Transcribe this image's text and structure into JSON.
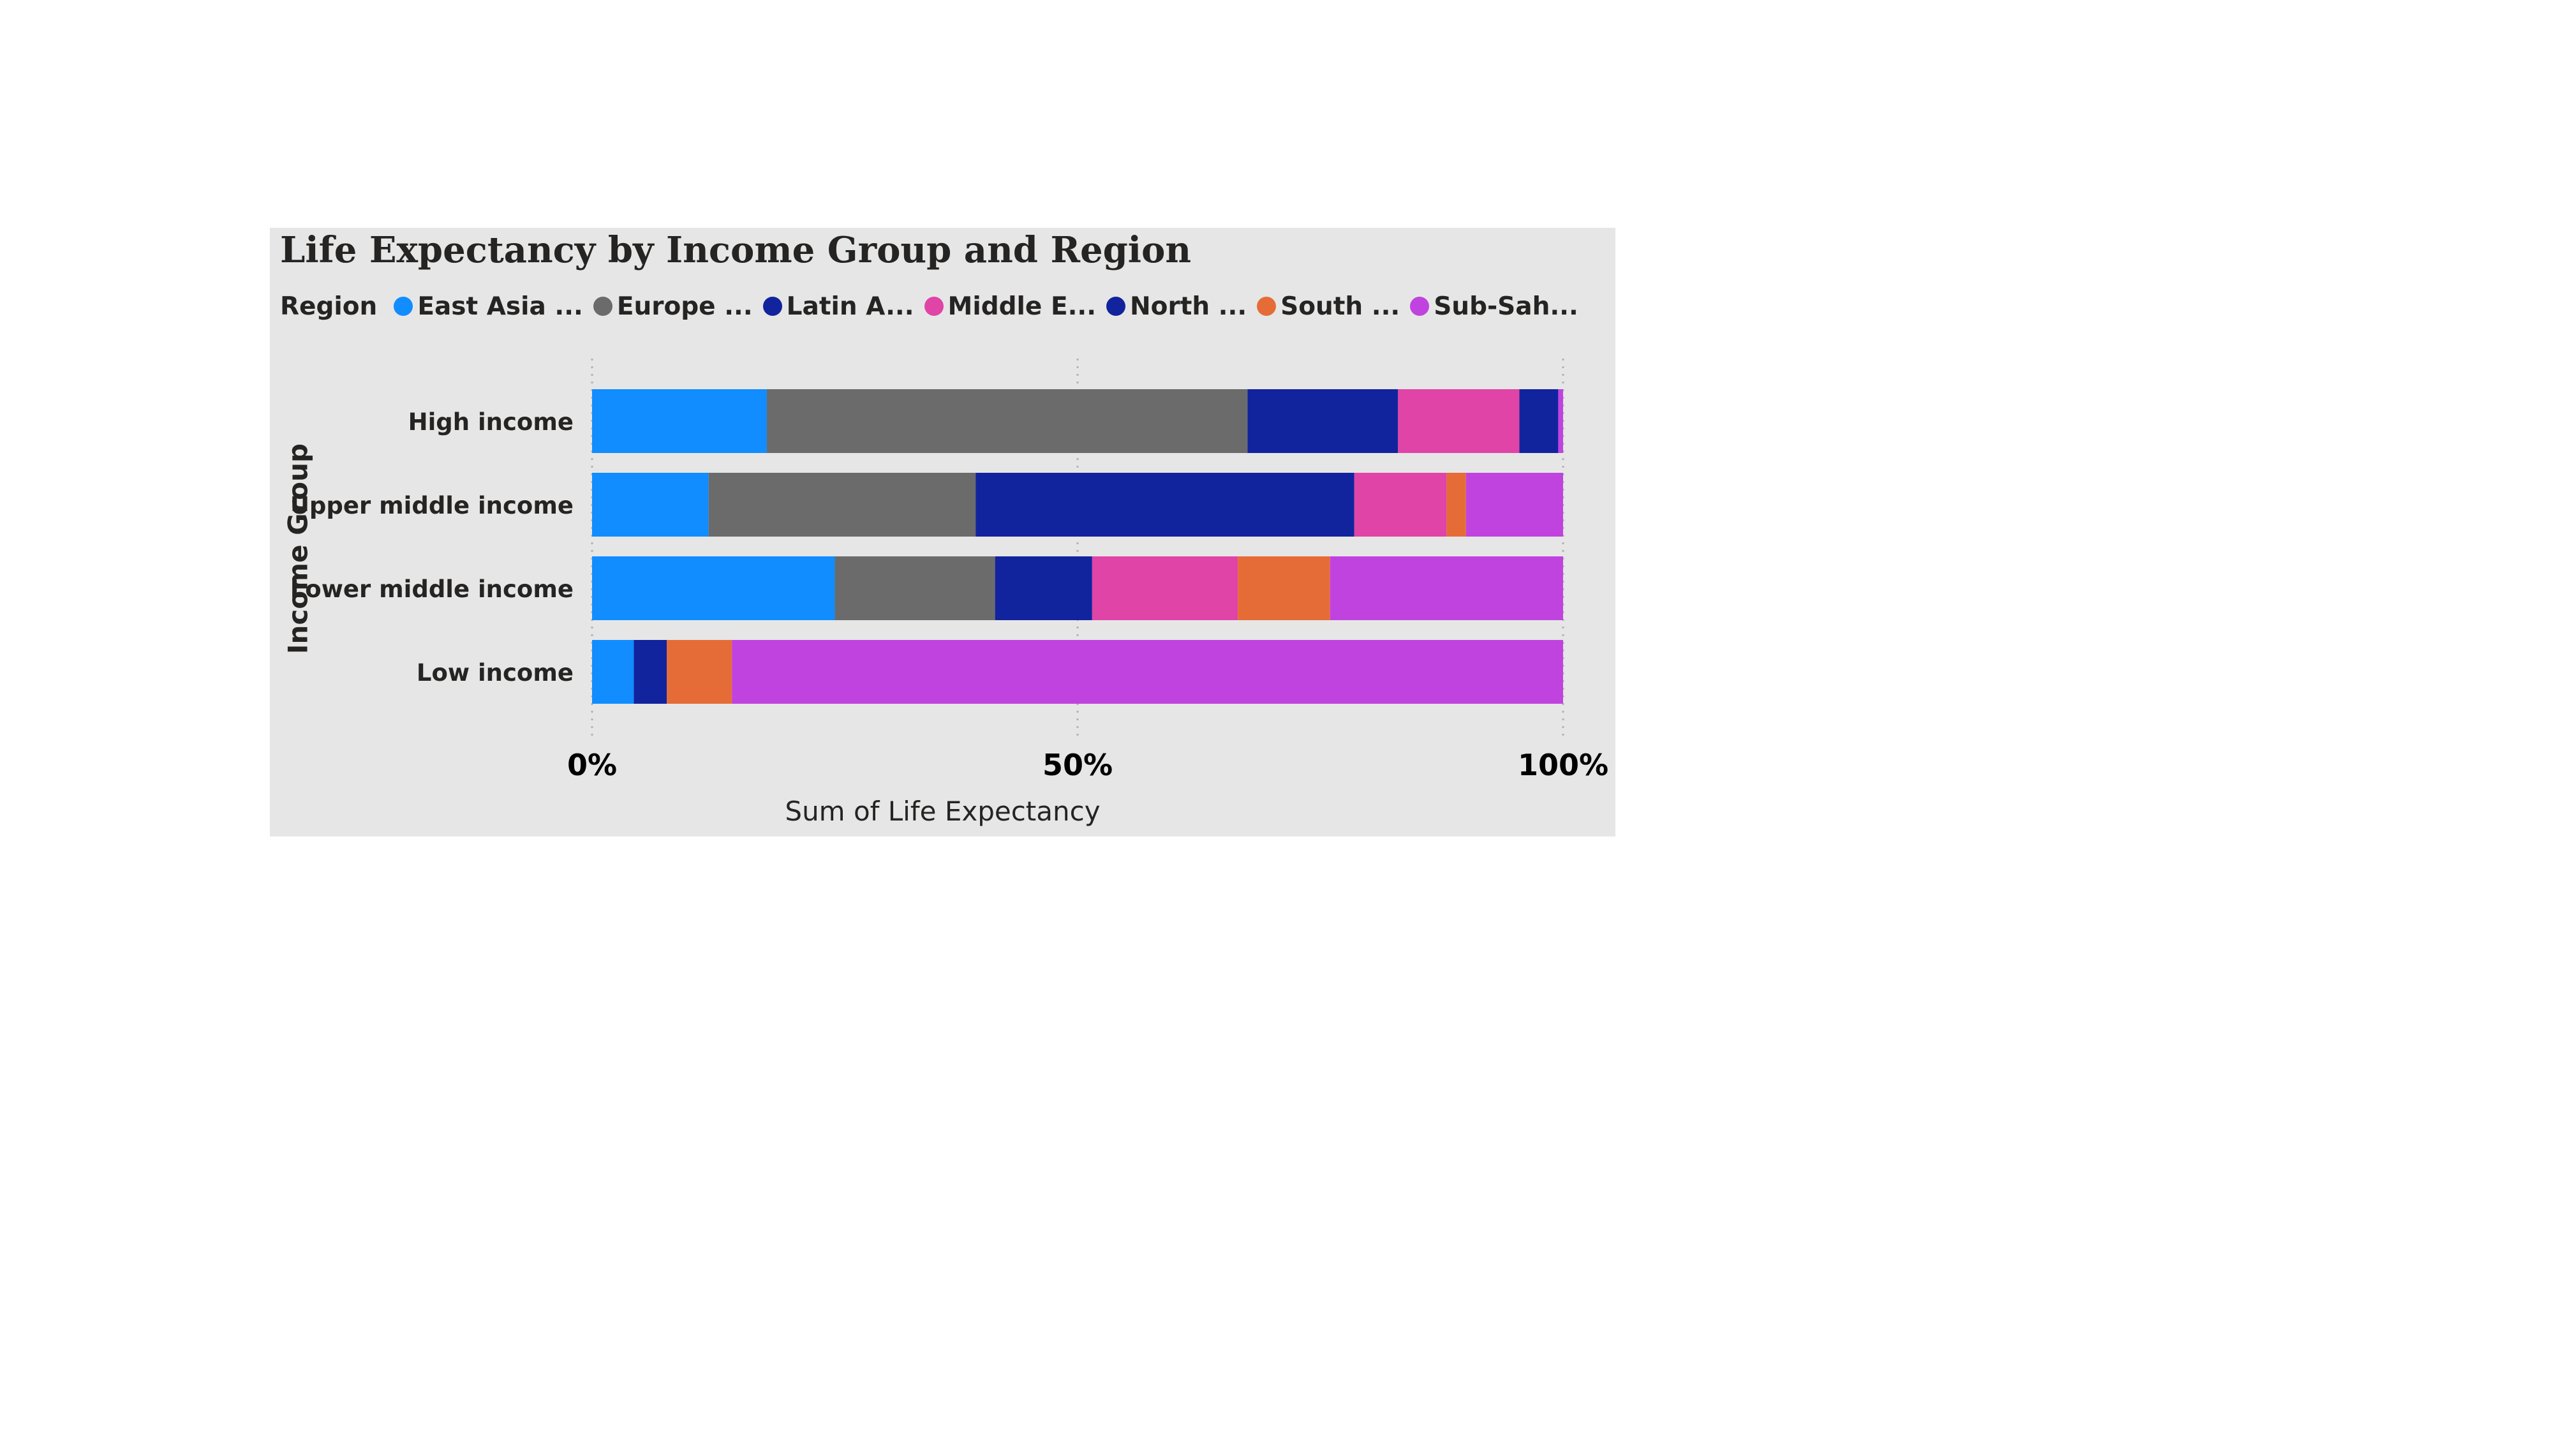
{
  "chart_data": {
    "type": "bar",
    "orientation": "horizontal",
    "stacking": "percent",
    "title": "Life Expectancy by Income Group and Region",
    "xlabel": "Sum of Life Expectancy",
    "ylabel": "Income Group",
    "xlim": [
      0,
      100
    ],
    "x_ticks": [
      "0%",
      "50%",
      "100%"
    ],
    "grid": "vertical dotted",
    "legend": {
      "title": "Region",
      "position": "top-left"
    },
    "categories": [
      "High income",
      "Upper middle income",
      "Lower middle income",
      "Low income"
    ],
    "series": [
      {
        "name": "East Asia ...",
        "color": "#118dff",
        "values": [
          18.0,
          12.0,
          25.0,
          4.3
        ]
      },
      {
        "name": "Europe ...",
        "color": "#6b6b6b",
        "values": [
          49.5,
          27.5,
          16.5,
          0
        ]
      },
      {
        "name": "Latin A...",
        "color": "#12239e",
        "values": [
          15.5,
          39.0,
          10.0,
          3.4
        ]
      },
      {
        "name": "Middle E...",
        "color": "#e044a7",
        "values": [
          12.5,
          9.5,
          15.0,
          0
        ]
      },
      {
        "name": "North ...",
        "color": "#12239e",
        "values": [
          4.0,
          0,
          0,
          0
        ]
      },
      {
        "name": "South ...",
        "color": "#e66c37",
        "values": [
          0,
          2.0,
          9.5,
          6.7
        ]
      },
      {
        "name": "Sub-Sah...",
        "color": "#c043df",
        "values": [
          0.5,
          10.0,
          24.0,
          85.6
        ]
      }
    ]
  }
}
